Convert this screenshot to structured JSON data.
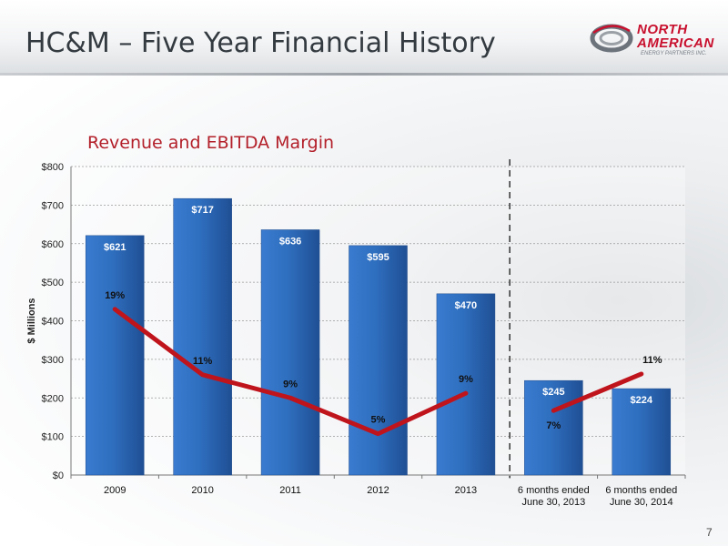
{
  "slide": {
    "title": "HC&M – Five Year Financial History",
    "subtitle": "Revenue and EBITDA Margin",
    "page_number": "7"
  },
  "logo": {
    "line1": "NORTH",
    "line2": "AMERICAN",
    "line3": "ENERGY PARTNERS INC."
  },
  "colors": {
    "bar": "#2f6fbf",
    "line": "#c0141c",
    "subtitle": "#b3202a"
  },
  "chart_data": {
    "type": "bar",
    "categories": [
      "2009",
      "2010",
      "2011",
      "2012",
      "2013",
      "6 months ended June 30, 2013",
      "6 months ended June 30, 2014"
    ],
    "category_lines": [
      [
        "2009"
      ],
      [
        "2010"
      ],
      [
        "2011"
      ],
      [
        "2012"
      ],
      [
        "2013"
      ],
      [
        "6 months ended",
        "June 30, 2013"
      ],
      [
        "6 months ended",
        "June 30, 2014"
      ]
    ],
    "series": [
      {
        "values": [
          621,
          717,
          636,
          595,
          470,
          245,
          224
        ],
        "labels": [
          "$621",
          "$717",
          "$636",
          "$595",
          "$470",
          "$245",
          "$224"
        ]
      }
    ],
    "line_series": {
      "segments": [
        {
          "categories": [
            0,
            1,
            2,
            3,
            4
          ],
          "y": [
            430,
            260,
            200,
            107,
            212
          ],
          "labels": [
            "19%",
            "11%",
            "9%",
            "5%",
            "9%"
          ]
        },
        {
          "categories": [
            5,
            6
          ],
          "y": [
            167,
            262
          ],
          "labels": [
            "7%",
            "11%"
          ]
        }
      ]
    },
    "ylabel": "$ Millions",
    "ylim": [
      0,
      800
    ],
    "yticks": [
      0,
      100,
      200,
      300,
      400,
      500,
      600,
      700,
      800
    ],
    "ytick_labels": [
      "$0",
      "$100",
      "$200",
      "$300",
      "$400",
      "$500",
      "$600",
      "$700",
      "$800"
    ],
    "grid": true,
    "divider_after_category": 4
  }
}
